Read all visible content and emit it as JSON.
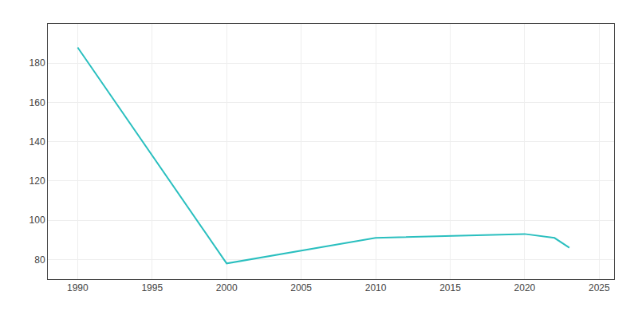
{
  "chart_data": {
    "type": "line",
    "x": [
      1990,
      2000,
      2010,
      2015,
      2020,
      2022,
      2023
    ],
    "values": [
      188,
      78,
      91,
      92,
      93,
      91,
      86
    ],
    "color": "#2ABFBF",
    "xlim": [
      1988,
      2026
    ],
    "ylim": [
      70,
      200
    ],
    "xticks": [
      1990,
      1995,
      2000,
      2005,
      2010,
      2015,
      2020,
      2025
    ],
    "yticks": [
      80,
      100,
      120,
      140,
      160,
      180
    ],
    "grid": true
  }
}
